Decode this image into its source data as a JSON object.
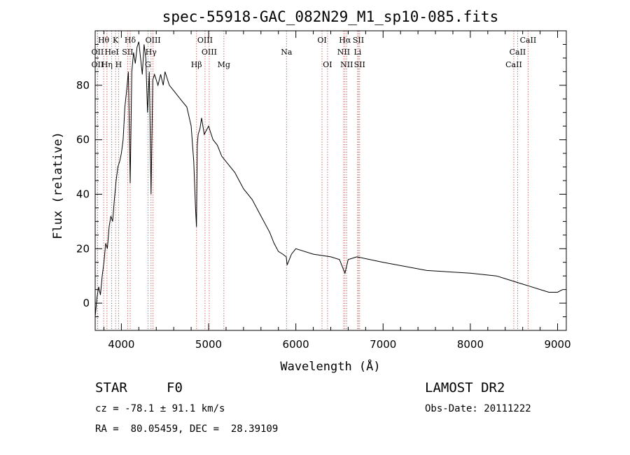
{
  "chart_data": {
    "type": "line",
    "title": "spec-55918-GAC_082N29_M1_sp10-085.fits",
    "xlabel": "Wavelength (Å)",
    "ylabel": "Flux (relative)",
    "xlim": [
      3700,
      9100
    ],
    "ylim": [
      -10,
      100
    ],
    "xticks": [
      4000,
      5000,
      6000,
      7000,
      8000,
      9000
    ],
    "yticks": [
      0,
      20,
      40,
      60,
      80
    ],
    "series": [
      {
        "color": "#000000",
        "x": [
          3700,
          3720,
          3740,
          3760,
          3780,
          3800,
          3820,
          3840,
          3860,
          3880,
          3900,
          3920,
          3940,
          3960,
          3980,
          4000,
          4020,
          4040,
          4060,
          4080,
          4101,
          4120,
          4140,
          4160,
          4180,
          4200,
          4220,
          4240,
          4260,
          4280,
          4300,
          4320,
          4340,
          4360,
          4380,
          4400,
          4420,
          4450,
          4480,
          4500,
          4550,
          4600,
          4650,
          4700,
          4750,
          4800,
          4830,
          4850,
          4861,
          4870,
          4880,
          4900,
          4920,
          4950,
          5000,
          5020,
          5050,
          5100,
          5150,
          5200,
          5300,
          5400,
          5500,
          5600,
          5700,
          5750,
          5800,
          5850,
          5890,
          5900,
          5950,
          6000,
          6200,
          6400,
          6500,
          6563,
          6600,
          6700,
          7000,
          7500,
          8000,
          8300,
          8400,
          8500,
          8600,
          8700,
          8800,
          8900,
          9000,
          9060
        ],
        "y": [
          -5,
          2,
          6,
          3,
          10,
          15,
          22,
          20,
          28,
          32,
          30,
          38,
          45,
          50,
          52,
          55,
          60,
          72,
          78,
          85,
          44,
          85,
          92,
          88,
          94,
          96,
          90,
          84,
          95,
          90,
          70,
          85,
          40,
          82,
          84,
          82,
          80,
          84,
          80,
          85,
          80,
          78,
          76,
          74,
          72,
          65,
          52,
          35,
          28,
          58,
          62,
          64,
          68,
          62,
          65,
          63,
          60,
          58,
          54,
          52,
          48,
          42,
          38,
          32,
          26,
          22,
          19,
          18,
          17,
          14,
          18,
          20,
          18,
          17,
          16,
          11,
          16,
          17,
          15,
          12,
          11,
          10,
          9,
          8,
          7,
          6,
          5,
          4,
          4,
          5
        ]
      }
    ],
    "lines": [
      {
        "label": "Hθ",
        "x": 3797,
        "row": 0
      },
      {
        "label": "K",
        "x": 3934,
        "row": 0
      },
      {
        "label": "Hδ",
        "x": 4101,
        "row": 0
      },
      {
        "label": "OIII",
        "x": 4363,
        "row": 0
      },
      {
        "label": "OIII",
        "x": 4959,
        "row": 0
      },
      {
        "label": "OI",
        "x": 6300,
        "row": 0
      },
      {
        "label": "Hα",
        "x": 6563,
        "row": 0
      },
      {
        "label": "SII",
        "x": 6717,
        "row": 0
      },
      {
        "label": "CaII",
        "x": 8662,
        "row": 0
      },
      {
        "label": "OII",
        "x": 3727,
        "row": 1
      },
      {
        "label": "HeI",
        "x": 3889,
        "row": 1
      },
      {
        "label": "SII",
        "x": 4072,
        "row": 1
      },
      {
        "label": "Hγ",
        "x": 4340,
        "row": 1
      },
      {
        "label": "OIII",
        "x": 5007,
        "row": 1
      },
      {
        "label": "Na",
        "x": 5893,
        "row": 1
      },
      {
        "label": "NII",
        "x": 6548,
        "row": 1
      },
      {
        "label": "Li",
        "x": 6708,
        "row": 1
      },
      {
        "label": "CaII",
        "x": 8542,
        "row": 1
      },
      {
        "label": "OII",
        "x": 3727,
        "row": 2
      },
      {
        "label": "Hη",
        "x": 3835,
        "row": 2
      },
      {
        "label": "H",
        "x": 3968,
        "row": 2
      },
      {
        "label": "G",
        "x": 4305,
        "row": 2
      },
      {
        "label": "Hβ",
        "x": 4861,
        "row": 2
      },
      {
        "label": "Mg",
        "x": 5175,
        "row": 2
      },
      {
        "label": "OI",
        "x": 6363,
        "row": 2
      },
      {
        "label": "NII",
        "x": 6583,
        "row": 2
      },
      {
        "label": "SII",
        "x": 6731,
        "row": 2
      },
      {
        "label": "CaII",
        "x": 8498,
        "row": 2
      }
    ]
  },
  "info": {
    "class": "STAR",
    "subclass": "F0",
    "survey": "LAMOST DR2",
    "cz": "cz = -78.1 ± 91.1 km/s",
    "obs_date": "Obs-Date: 20111222",
    "coords": "RA =  80.05459, DEC =  28.39109"
  }
}
